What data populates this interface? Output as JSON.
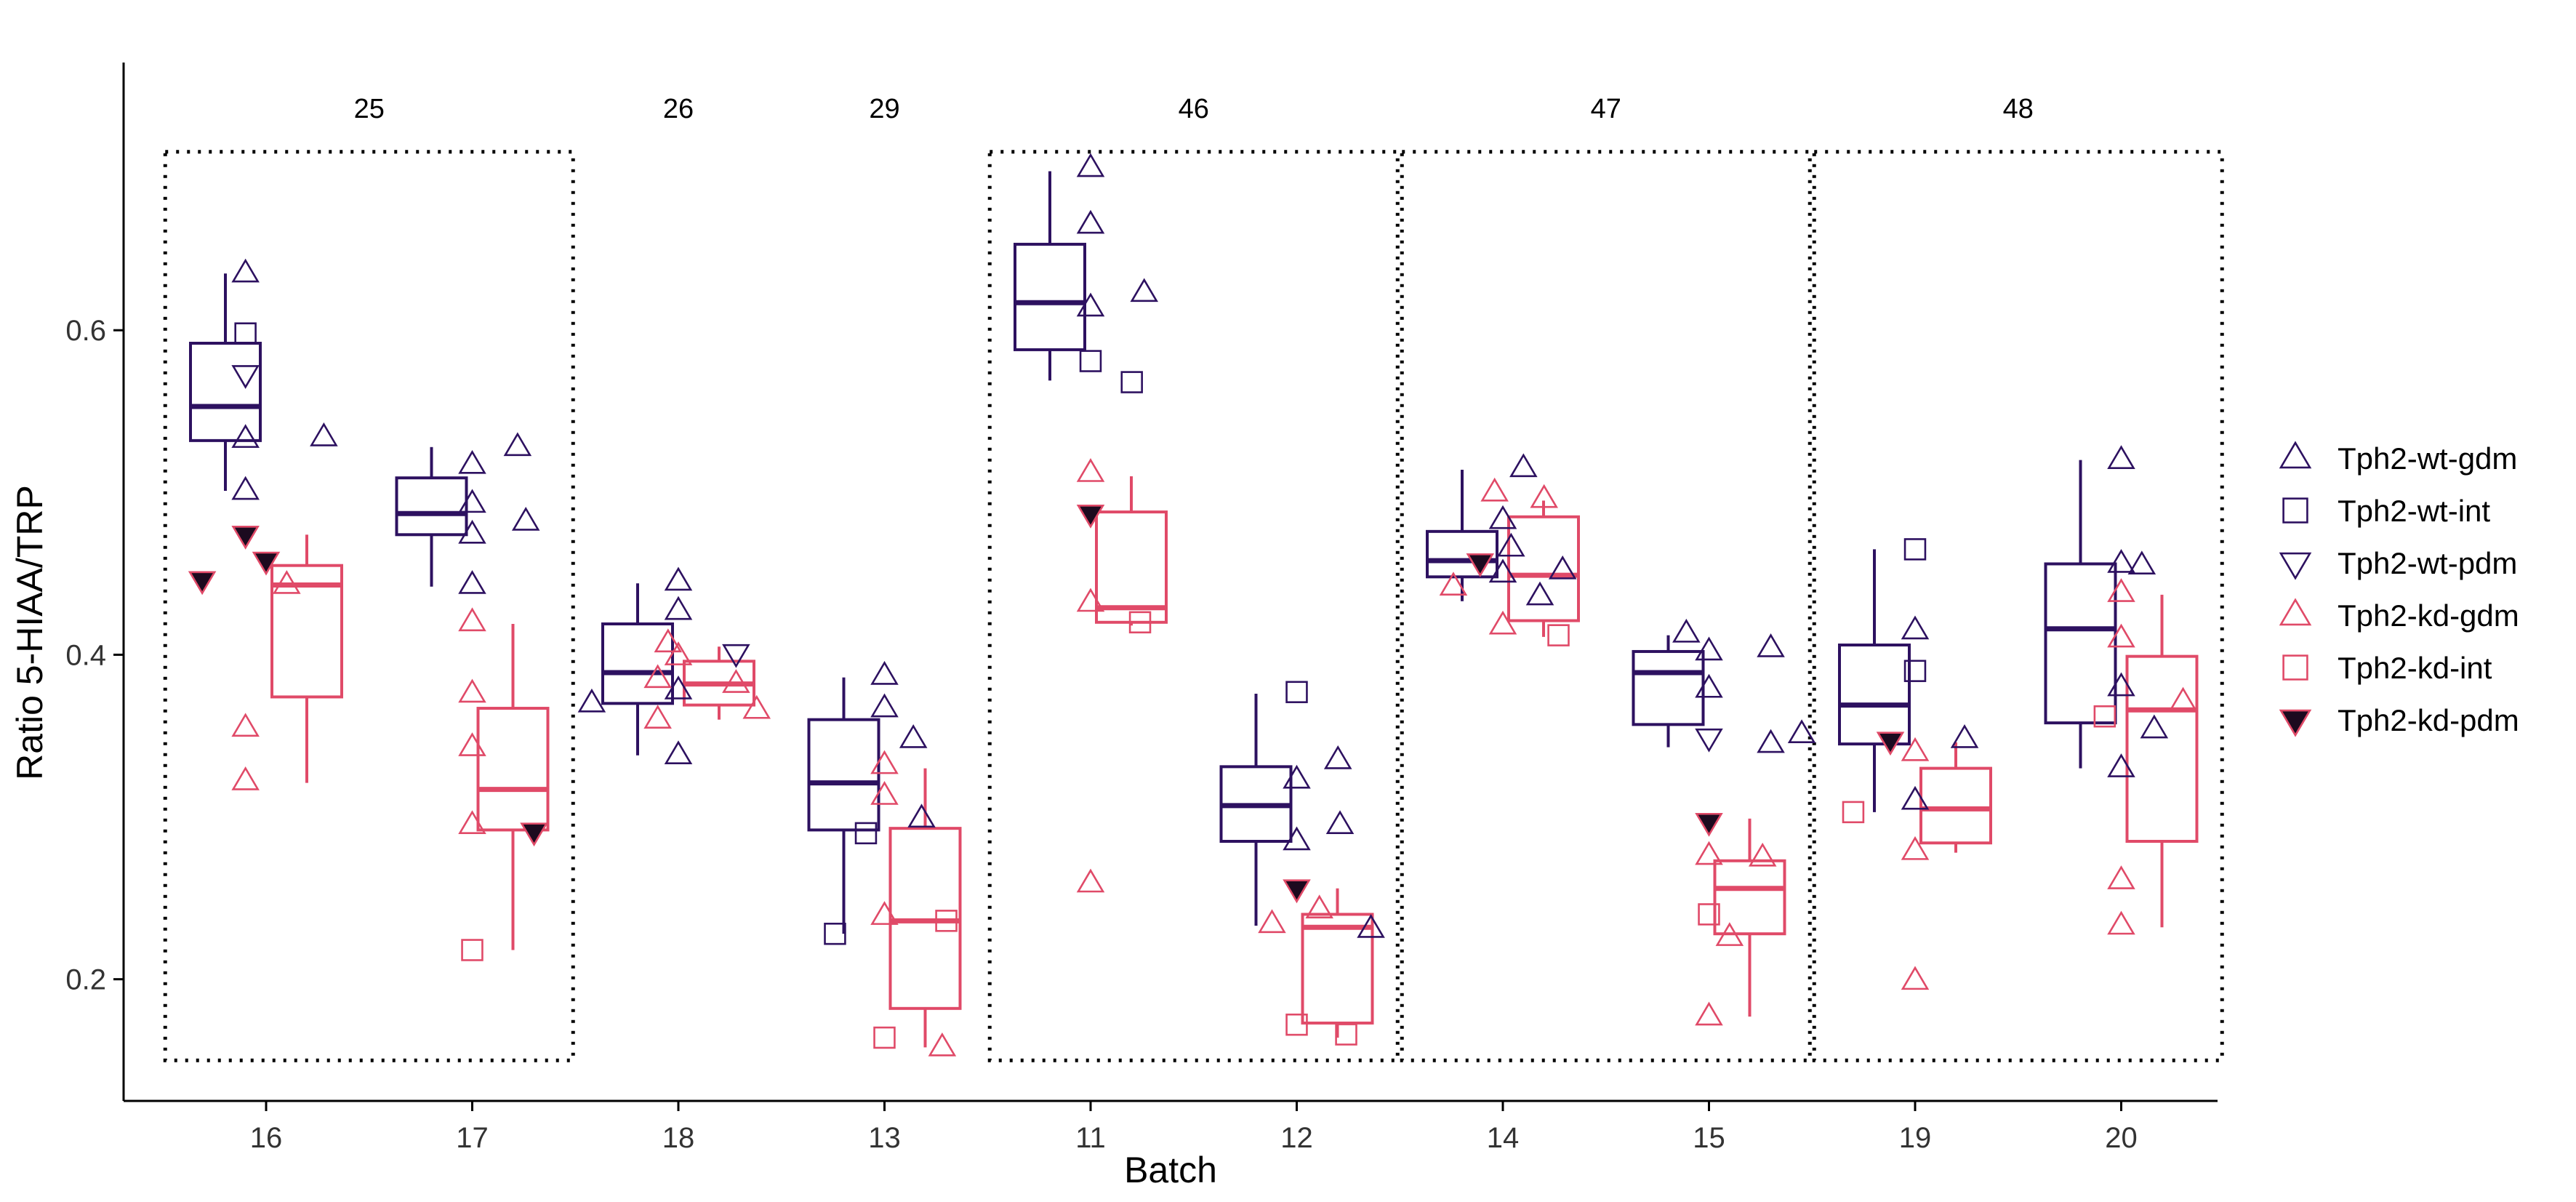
{
  "chart_data": {
    "type": "box",
    "xlabel": "Batch",
    "ylabel": "Ratio 5-HIAA/TRP",
    "ylim": [
      0.125,
      0.765
    ],
    "yticks": [
      0.2,
      0.4,
      0.6
    ],
    "ytick_labels": [
      "0.2",
      "0.4",
      "0.6"
    ],
    "categories": [
      "16",
      "17",
      "18",
      "13",
      "11",
      "12",
      "14",
      "15",
      "19",
      "20"
    ],
    "groups": [
      {
        "label": "25",
        "from": "16",
        "to": "17",
        "boxed": true
      },
      {
        "label": "26",
        "from": "18",
        "to": "18",
        "boxed": false
      },
      {
        "label": "29",
        "from": "13",
        "to": "13",
        "boxed": false
      },
      {
        "label": "46",
        "from": "11",
        "to": "12",
        "boxed": true
      },
      {
        "label": "47",
        "from": "14",
        "to": "15",
        "boxed": true
      },
      {
        "label": "48",
        "from": "19",
        "to": "20",
        "boxed": true
      }
    ],
    "colors": {
      "wt": "#2d1160",
      "kd": "#e04a68",
      "kd_fill": "#1c0a1f"
    },
    "legend": {
      "position": "right",
      "entries": [
        {
          "label": "Tph2-wt-gdm",
          "shape": "triangle",
          "color": "#2d1160"
        },
        {
          "label": "Tph2-wt-int",
          "shape": "square",
          "color": "#2d1160"
        },
        {
          "label": "Tph2-wt-pdm",
          "shape": "triangle-down",
          "color": "#2d1160"
        },
        {
          "label": "Tph2-kd-gdm",
          "shape": "triangle",
          "color": "#e04a68"
        },
        {
          "label": "Tph2-kd-int",
          "shape": "square",
          "color": "#e04a68"
        },
        {
          "label": "Tph2-kd-pdm",
          "shape": "triangle-down-filled",
          "color": "#e04a68"
        }
      ]
    },
    "boxes": [
      {
        "batch": "16",
        "genotype": "wt",
        "q1": 0.532,
        "median": 0.553,
        "q3": 0.592,
        "whisker_low": 0.501,
        "whisker_high": 0.635
      },
      {
        "batch": "16",
        "genotype": "kd",
        "q1": 0.374,
        "median": 0.443,
        "q3": 0.455,
        "whisker_low": 0.321,
        "whisker_high": 0.474
      },
      {
        "batch": "17",
        "genotype": "wt",
        "q1": 0.474,
        "median": 0.487,
        "q3": 0.509,
        "whisker_low": 0.442,
        "whisker_high": 0.528
      },
      {
        "batch": "17",
        "genotype": "kd",
        "q1": 0.292,
        "median": 0.317,
        "q3": 0.367,
        "whisker_low": 0.218,
        "whisker_high": 0.419
      },
      {
        "batch": "18",
        "genotype": "wt",
        "q1": 0.37,
        "median": 0.389,
        "q3": 0.419,
        "whisker_low": 0.338,
        "whisker_high": 0.444
      },
      {
        "batch": "18",
        "genotype": "kd",
        "q1": 0.369,
        "median": 0.382,
        "q3": 0.396,
        "whisker_low": 0.36,
        "whisker_high": 0.405
      },
      {
        "batch": "13",
        "genotype": "wt",
        "q1": 0.292,
        "median": 0.321,
        "q3": 0.36,
        "whisker_low": 0.228,
        "whisker_high": 0.386
      },
      {
        "batch": "13",
        "genotype": "kd",
        "q1": 0.182,
        "median": 0.236,
        "q3": 0.293,
        "whisker_low": 0.158,
        "whisker_high": 0.33
      },
      {
        "batch": "11",
        "genotype": "wt",
        "q1": 0.588,
        "median": 0.617,
        "q3": 0.653,
        "whisker_low": 0.569,
        "whisker_high": 0.698
      },
      {
        "batch": "11",
        "genotype": "kd",
        "q1": 0.42,
        "median": 0.429,
        "q3": 0.488,
        "whisker_low": 0.418,
        "whisker_high": 0.51
      },
      {
        "batch": "12",
        "genotype": "wt",
        "q1": 0.285,
        "median": 0.307,
        "q3": 0.331,
        "whisker_low": 0.233,
        "whisker_high": 0.376
      },
      {
        "batch": "12",
        "genotype": "kd",
        "q1": 0.173,
        "median": 0.232,
        "q3": 0.24,
        "whisker_low": 0.164,
        "whisker_high": 0.256
      },
      {
        "batch": "14",
        "genotype": "wt",
        "q1": 0.448,
        "median": 0.458,
        "q3": 0.476,
        "whisker_low": 0.433,
        "whisker_high": 0.514
      },
      {
        "batch": "14",
        "genotype": "kd",
        "q1": 0.421,
        "median": 0.449,
        "q3": 0.485,
        "whisker_low": 0.411,
        "whisker_high": 0.495
      },
      {
        "batch": "15",
        "genotype": "wt",
        "q1": 0.357,
        "median": 0.389,
        "q3": 0.402,
        "whisker_low": 0.343,
        "whisker_high": 0.412
      },
      {
        "batch": "15",
        "genotype": "kd",
        "q1": 0.228,
        "median": 0.256,
        "q3": 0.273,
        "whisker_low": 0.177,
        "whisker_high": 0.299
      },
      {
        "batch": "19",
        "genotype": "wt",
        "q1": 0.345,
        "median": 0.369,
        "q3": 0.406,
        "whisker_low": 0.303,
        "whisker_high": 0.465
      },
      {
        "batch": "19",
        "genotype": "kd",
        "q1": 0.284,
        "median": 0.305,
        "q3": 0.33,
        "whisker_low": 0.278,
        "whisker_high": 0.346
      },
      {
        "batch": "20",
        "genotype": "wt",
        "q1": 0.358,
        "median": 0.416,
        "q3": 0.456,
        "whisker_low": 0.33,
        "whisker_high": 0.52
      },
      {
        "batch": "20",
        "genotype": "kd",
        "q1": 0.285,
        "median": 0.366,
        "q3": 0.399,
        "whisker_low": 0.232,
        "whisker_high": 0.437
      }
    ],
    "points": [
      {
        "batch": "16",
        "group": "Tph2-wt-gdm",
        "offset": -0.1,
        "y": 0.635
      },
      {
        "batch": "16",
        "group": "Tph2-wt-gdm",
        "offset": -0.1,
        "y": 0.533
      },
      {
        "batch": "16",
        "group": "Tph2-wt-gdm",
        "offset": -0.1,
        "y": 0.501
      },
      {
        "batch": "16",
        "group": "Tph2-wt-gdm",
        "offset": 0.28,
        "y": 0.534
      },
      {
        "batch": "16",
        "group": "Tph2-wt-int",
        "offset": -0.1,
        "y": 0.598
      },
      {
        "batch": "16",
        "group": "Tph2-wt-pdm",
        "offset": -0.1,
        "y": 0.573
      },
      {
        "batch": "16",
        "group": "Tph2-kd-pdm",
        "offset": -0.31,
        "y": 0.446
      },
      {
        "batch": "16",
        "group": "Tph2-kd-pdm",
        "offset": -0.1,
        "y": 0.474
      },
      {
        "batch": "16",
        "group": "Tph2-kd-pdm",
        "offset": 0.0,
        "y": 0.458
      },
      {
        "batch": "16",
        "group": "Tph2-kd-gdm",
        "offset": 0.1,
        "y": 0.443
      },
      {
        "batch": "16",
        "group": "Tph2-kd-gdm",
        "offset": -0.1,
        "y": 0.355
      },
      {
        "batch": "16",
        "group": "Tph2-kd-gdm",
        "offset": -0.1,
        "y": 0.322
      },
      {
        "batch": "17",
        "group": "Tph2-wt-gdm",
        "offset": 0.0,
        "y": 0.517
      },
      {
        "batch": "17",
        "group": "Tph2-wt-gdm",
        "offset": 0.0,
        "y": 0.493
      },
      {
        "batch": "17",
        "group": "Tph2-wt-gdm",
        "offset": 0.0,
        "y": 0.474
      },
      {
        "batch": "17",
        "group": "Tph2-wt-gdm",
        "offset": 0.0,
        "y": 0.443
      },
      {
        "batch": "17",
        "group": "Tph2-wt-gdm",
        "offset": 0.22,
        "y": 0.528
      },
      {
        "batch": "17",
        "group": "Tph2-wt-gdm",
        "offset": 0.26,
        "y": 0.482
      },
      {
        "batch": "17",
        "group": "Tph2-kd-gdm",
        "offset": 0.0,
        "y": 0.42
      },
      {
        "batch": "17",
        "group": "Tph2-kd-gdm",
        "offset": 0.0,
        "y": 0.376
      },
      {
        "batch": "17",
        "group": "Tph2-kd-gdm",
        "offset": 0.0,
        "y": 0.343
      },
      {
        "batch": "17",
        "group": "Tph2-kd-gdm",
        "offset": 0.0,
        "y": 0.295
      },
      {
        "batch": "17",
        "group": "Tph2-kd-int",
        "offset": 0.0,
        "y": 0.218
      },
      {
        "batch": "17",
        "group": "Tph2-kd-pdm",
        "offset": 0.3,
        "y": 0.291
      },
      {
        "batch": "18",
        "group": "Tph2-wt-gdm",
        "offset": -0.42,
        "y": 0.37
      },
      {
        "batch": "18",
        "group": "Tph2-wt-gdm",
        "offset": 0.0,
        "y": 0.445
      },
      {
        "batch": "18",
        "group": "Tph2-wt-gdm",
        "offset": 0.0,
        "y": 0.427
      },
      {
        "batch": "18",
        "group": "Tph2-wt-gdm",
        "offset": 0.0,
        "y": 0.378
      },
      {
        "batch": "18",
        "group": "Tph2-wt-gdm",
        "offset": 0.0,
        "y": 0.338
      },
      {
        "batch": "18",
        "group": "Tph2-wt-pdm",
        "offset": 0.28,
        "y": 0.401
      },
      {
        "batch": "18",
        "group": "Tph2-kd-gdm",
        "offset": -0.05,
        "y": 0.407
      },
      {
        "batch": "18",
        "group": "Tph2-kd-gdm",
        "offset": -0.1,
        "y": 0.385
      },
      {
        "batch": "18",
        "group": "Tph2-kd-gdm",
        "offset": -0.1,
        "y": 0.36
      },
      {
        "batch": "18",
        "group": "Tph2-kd-gdm",
        "offset": 0.0,
        "y": 0.399
      },
      {
        "batch": "18",
        "group": "Tph2-kd-gdm",
        "offset": 0.28,
        "y": 0.382
      },
      {
        "batch": "18",
        "group": "Tph2-kd-gdm",
        "offset": 0.38,
        "y": 0.366
      },
      {
        "batch": "13",
        "group": "Tph2-wt-gdm",
        "offset": 0.0,
        "y": 0.387
      },
      {
        "batch": "13",
        "group": "Tph2-wt-gdm",
        "offset": 0.0,
        "y": 0.367
      },
      {
        "batch": "13",
        "group": "Tph2-wt-gdm",
        "offset": 0.14,
        "y": 0.348
      },
      {
        "batch": "13",
        "group": "Tph2-wt-gdm",
        "offset": 0.18,
        "y": 0.299
      },
      {
        "batch": "13",
        "group": "Tph2-wt-int",
        "offset": -0.24,
        "y": 0.228
      },
      {
        "batch": "13",
        "group": "Tph2-wt-int",
        "offset": -0.09,
        "y": 0.29
      },
      {
        "batch": "13",
        "group": "Tph2-kd-gdm",
        "offset": 0.0,
        "y": 0.332
      },
      {
        "batch": "13",
        "group": "Tph2-kd-gdm",
        "offset": 0.0,
        "y": 0.313
      },
      {
        "batch": "13",
        "group": "Tph2-kd-gdm",
        "offset": 0.0,
        "y": 0.239
      },
      {
        "batch": "13",
        "group": "Tph2-kd-gdm",
        "offset": 0.28,
        "y": 0.158
      },
      {
        "batch": "13",
        "group": "Tph2-kd-int",
        "offset": 0.0,
        "y": 0.164
      },
      {
        "batch": "13",
        "group": "Tph2-kd-int",
        "offset": 0.3,
        "y": 0.236
      },
      {
        "batch": "11",
        "group": "Tph2-wt-gdm",
        "offset": 0.0,
        "y": 0.7
      },
      {
        "batch": "11",
        "group": "Tph2-wt-gdm",
        "offset": 0.0,
        "y": 0.665
      },
      {
        "batch": "11",
        "group": "Tph2-wt-gdm",
        "offset": 0.0,
        "y": 0.614
      },
      {
        "batch": "11",
        "group": "Tph2-wt-gdm",
        "offset": 0.26,
        "y": 0.623
      },
      {
        "batch": "11",
        "group": "Tph2-wt-int",
        "offset": 0.0,
        "y": 0.581
      },
      {
        "batch": "11",
        "group": "Tph2-wt-int",
        "offset": 0.2,
        "y": 0.568
      },
      {
        "batch": "11",
        "group": "Tph2-kd-gdm",
        "offset": 0.0,
        "y": 0.512
      },
      {
        "batch": "11",
        "group": "Tph2-kd-gdm",
        "offset": 0.0,
        "y": 0.432
      },
      {
        "batch": "11",
        "group": "Tph2-kd-gdm",
        "offset": 0.0,
        "y": 0.259
      },
      {
        "batch": "11",
        "group": "Tph2-kd-pdm",
        "offset": 0.0,
        "y": 0.487
      },
      {
        "batch": "11",
        "group": "Tph2-kd-int",
        "offset": 0.24,
        "y": 0.42
      },
      {
        "batch": "12",
        "group": "Tph2-wt-int",
        "offset": 0.0,
        "y": 0.377
      },
      {
        "batch": "12",
        "group": "Tph2-wt-gdm",
        "offset": 0.0,
        "y": 0.323
      },
      {
        "batch": "12",
        "group": "Tph2-wt-gdm",
        "offset": 0.0,
        "y": 0.285
      },
      {
        "batch": "12",
        "group": "Tph2-wt-gdm",
        "offset": 0.2,
        "y": 0.335
      },
      {
        "batch": "12",
        "group": "Tph2-wt-gdm",
        "offset": 0.21,
        "y": 0.295
      },
      {
        "batch": "12",
        "group": "Tph2-wt-gdm",
        "offset": 0.36,
        "y": 0.231
      },
      {
        "batch": "12",
        "group": "Tph2-kd-pdm",
        "offset": 0.0,
        "y": 0.256
      },
      {
        "batch": "12",
        "group": "Tph2-kd-gdm",
        "offset": -0.12,
        "y": 0.234
      },
      {
        "batch": "12",
        "group": "Tph2-kd-gdm",
        "offset": 0.11,
        "y": 0.243
      },
      {
        "batch": "12",
        "group": "Tph2-kd-int",
        "offset": 0.0,
        "y": 0.172
      },
      {
        "batch": "12",
        "group": "Tph2-kd-int",
        "offset": 0.24,
        "y": 0.166
      },
      {
        "batch": "14",
        "group": "Tph2-wt-gdm",
        "offset": 0.0,
        "y": 0.483
      },
      {
        "batch": "14",
        "group": "Tph2-wt-gdm",
        "offset": 0.0,
        "y": 0.45
      },
      {
        "batch": "14",
        "group": "Tph2-wt-gdm",
        "offset": 0.04,
        "y": 0.466
      },
      {
        "batch": "14",
        "group": "Tph2-wt-gdm",
        "offset": 0.1,
        "y": 0.515
      },
      {
        "batch": "14",
        "group": "Tph2-wt-gdm",
        "offset": 0.18,
        "y": 0.436
      },
      {
        "batch": "14",
        "group": "Tph2-wt-gdm",
        "offset": 0.29,
        "y": 0.452
      },
      {
        "batch": "14",
        "group": "Tph2-kd-pdm",
        "offset": -0.11,
        "y": 0.457
      },
      {
        "batch": "14",
        "group": "Tph2-kd-gdm",
        "offset": -0.24,
        "y": 0.442
      },
      {
        "batch": "14",
        "group": "Tph2-kd-gdm",
        "offset": -0.04,
        "y": 0.5
      },
      {
        "batch": "14",
        "group": "Tph2-kd-gdm",
        "offset": 0.0,
        "y": 0.418
      },
      {
        "batch": "14",
        "group": "Tph2-kd-gdm",
        "offset": 0.2,
        "y": 0.496
      },
      {
        "batch": "14",
        "group": "Tph2-kd-int",
        "offset": 0.27,
        "y": 0.412
      },
      {
        "batch": "15",
        "group": "Tph2-wt-gdm",
        "offset": -0.11,
        "y": 0.413
      },
      {
        "batch": "15",
        "group": "Tph2-wt-gdm",
        "offset": 0.0,
        "y": 0.402
      },
      {
        "batch": "15",
        "group": "Tph2-wt-gdm",
        "offset": 0.0,
        "y": 0.379
      },
      {
        "batch": "15",
        "group": "Tph2-wt-gdm",
        "offset": 0.3,
        "y": 0.404
      },
      {
        "batch": "15",
        "group": "Tph2-wt-gdm",
        "offset": 0.3,
        "y": 0.345
      },
      {
        "batch": "15",
        "group": "Tph2-wt-gdm",
        "offset": 0.45,
        "y": 0.351
      },
      {
        "batch": "15",
        "group": "Tph2-wt-pdm",
        "offset": 0.0,
        "y": 0.349
      },
      {
        "batch": "15",
        "group": "Tph2-kd-pdm",
        "offset": 0.0,
        "y": 0.297
      },
      {
        "batch": "15",
        "group": "Tph2-kd-gdm",
        "offset": 0.0,
        "y": 0.276
      },
      {
        "batch": "15",
        "group": "Tph2-kd-gdm",
        "offset": 0.0,
        "y": 0.177
      },
      {
        "batch": "15",
        "group": "Tph2-kd-gdm",
        "offset": 0.1,
        "y": 0.226
      },
      {
        "batch": "15",
        "group": "Tph2-kd-gdm",
        "offset": 0.26,
        "y": 0.275
      },
      {
        "batch": "15",
        "group": "Tph2-kd-int",
        "offset": 0.0,
        "y": 0.24
      },
      {
        "batch": "19",
        "group": "Tph2-wt-int",
        "offset": 0.0,
        "y": 0.465
      },
      {
        "batch": "19",
        "group": "Tph2-wt-int",
        "offset": 0.0,
        "y": 0.39
      },
      {
        "batch": "19",
        "group": "Tph2-wt-gdm",
        "offset": 0.0,
        "y": 0.415
      },
      {
        "batch": "19",
        "group": "Tph2-wt-gdm",
        "offset": 0.0,
        "y": 0.31
      },
      {
        "batch": "19",
        "group": "Tph2-wt-gdm",
        "offset": 0.24,
        "y": 0.348
      },
      {
        "batch": "19",
        "group": "Tph2-kd-pdm",
        "offset": -0.12,
        "y": 0.347
      },
      {
        "batch": "19",
        "group": "Tph2-kd-int",
        "offset": -0.3,
        "y": 0.303
      },
      {
        "batch": "19",
        "group": "Tph2-kd-gdm",
        "offset": 0.0,
        "y": 0.34
      },
      {
        "batch": "19",
        "group": "Tph2-kd-gdm",
        "offset": 0.0,
        "y": 0.279
      },
      {
        "batch": "19",
        "group": "Tph2-kd-gdm",
        "offset": 0.0,
        "y": 0.199
      },
      {
        "batch": "20",
        "group": "Tph2-wt-gdm",
        "offset": 0.0,
        "y": 0.52
      },
      {
        "batch": "20",
        "group": "Tph2-wt-gdm",
        "offset": 0.0,
        "y": 0.456
      },
      {
        "batch": "20",
        "group": "Tph2-wt-gdm",
        "offset": 0.0,
        "y": 0.38
      },
      {
        "batch": "20",
        "group": "Tph2-wt-gdm",
        "offset": 0.0,
        "y": 0.33
      },
      {
        "batch": "20",
        "group": "Tph2-wt-gdm",
        "offset": 0.1,
        "y": 0.455
      },
      {
        "batch": "20",
        "group": "Tph2-wt-gdm",
        "offset": 0.16,
        "y": 0.354
      },
      {
        "batch": "20",
        "group": "Tph2-kd-int",
        "offset": -0.08,
        "y": 0.362
      },
      {
        "batch": "20",
        "group": "Tph2-kd-gdm",
        "offset": 0.0,
        "y": 0.438
      },
      {
        "batch": "20",
        "group": "Tph2-kd-gdm",
        "offset": 0.0,
        "y": 0.41
      },
      {
        "batch": "20",
        "group": "Tph2-kd-gdm",
        "offset": 0.0,
        "y": 0.261
      },
      {
        "batch": "20",
        "group": "Tph2-kd-gdm",
        "offset": 0.0,
        "y": 0.233
      },
      {
        "batch": "20",
        "group": "Tph2-kd-gdm",
        "offset": 0.3,
        "y": 0.371
      }
    ]
  }
}
